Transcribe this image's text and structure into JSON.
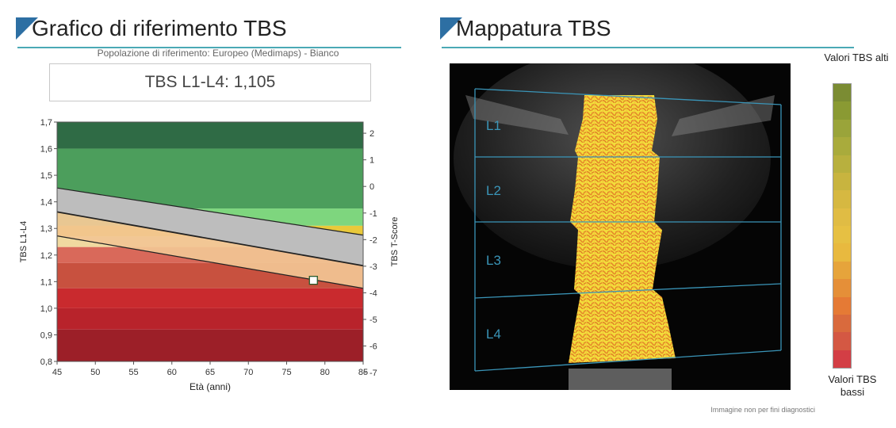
{
  "left_panel": {
    "title": "Grafico di riferimento TBS",
    "subtitle": "Popolazione di riferimento: Europeo (Medimaps) - Bianco",
    "value_label": "TBS  L1-L4: 1,105"
  },
  "right_panel": {
    "title": "Mappatura TBS",
    "vertebra_labels": [
      "L1",
      "L2",
      "L3",
      "L4"
    ],
    "legend_high": "Valori TBS alti",
    "legend_low": "Valori TBS bassi",
    "disclaimer": "Immagine non per fini diagnostici"
  },
  "colors": {
    "accent_line": "#4aa9b5",
    "title_triangle": "#2d6fa3",
    "patient_marker": "#ffffff",
    "vertebra_outline": "#3a95b8"
  },
  "chart_data": {
    "type": "area",
    "xlabel": "Età (anni)",
    "ylabel": "TBS L1-L4",
    "y2label": "TBS T-Score",
    "xlim": [
      45,
      85
    ],
    "ylim": [
      0.8,
      1.7
    ],
    "x_ticks": [
      "45",
      "50",
      "55",
      "60",
      "65",
      "70",
      "75",
      "80",
      "85"
    ],
    "y_ticks": [
      "0,8",
      "0,9",
      "1,0",
      "1,1",
      "1,2",
      "1,3",
      "1,4",
      "1,5",
      "1,6",
      "1,7"
    ],
    "y2_ticks": [
      "2",
      "1",
      "0",
      "-1",
      "-2",
      "-3",
      "-4",
      "-5",
      "-6",
      "-7"
    ],
    "y2_values": [
      2,
      1,
      0,
      -1,
      -2,
      -3,
      -4,
      -5,
      -6,
      -7
    ],
    "y2_at_y": [
      1.658,
      1.558,
      1.458,
      1.358,
      1.258,
      1.158,
      1.058,
      0.958,
      0.858,
      0.758
    ],
    "grid": false,
    "bands": [
      {
        "y0": 1.6,
        "y1": 1.7,
        "color": "#2f6b45"
      },
      {
        "y0": 1.375,
        "y1": 1.6,
        "color": "#4c9e5c"
      },
      {
        "y0": 1.31,
        "y1": 1.375,
        "color": "#7ed67e"
      },
      {
        "y0": 1.27,
        "y1": 1.31,
        "color": "#e9c93a"
      },
      {
        "y0": 1.23,
        "y1": 1.27,
        "color": "#f0d9a0"
      },
      {
        "y0": 1.17,
        "y1": 1.23,
        "color": "#d9695a"
      },
      {
        "y0": 1.075,
        "y1": 1.17,
        "color": "#c8513f"
      },
      {
        "y0": 1.0,
        "y1": 1.075,
        "color": "#c92a2e"
      },
      {
        "y0": 0.92,
        "y1": 1.0,
        "color": "#b8232b"
      },
      {
        "y0": 0.8,
        "y1": 0.92,
        "color": "#9c1f28"
      }
    ],
    "reference_lines": [
      {
        "name": "upper",
        "x": [
          45,
          85
        ],
        "y": [
          1.452,
          1.275
        ]
      },
      {
        "name": "mean",
        "x": [
          45,
          85
        ],
        "y": [
          1.362,
          1.16
        ]
      },
      {
        "name": "lower",
        "x": [
          45,
          85
        ],
        "y": [
          1.272,
          1.075
        ]
      }
    ],
    "patient_point": {
      "x": 78.5,
      "y": 1.105
    }
  },
  "colorbar": {
    "stops": [
      "#7b8c33",
      "#8a9a33",
      "#9aa43a",
      "#a9ab3c",
      "#b8b03e",
      "#c8b43f",
      "#d6b841",
      "#e0bc44",
      "#e6c043",
      "#e8b93f",
      "#e6a43b",
      "#e58f38",
      "#e57a35",
      "#d96a3d",
      "#d45843",
      "#d33e45"
    ]
  }
}
